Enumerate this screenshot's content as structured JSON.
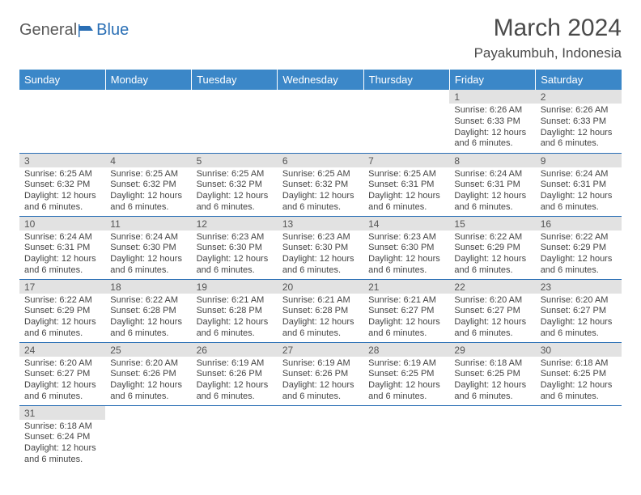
{
  "logo": {
    "text1": "General",
    "text2": "Blue"
  },
  "title": "March 2024",
  "location": "Payakumbuh, Indonesia",
  "colors": {
    "header_bg": "#3b87c8",
    "header_text": "#ffffff",
    "daynum_bg": "#e2e2e2",
    "row_border": "#2a6fb5",
    "logo_gray": "#5a5a5a",
    "logo_blue": "#2a6fb5",
    "body_text": "#444444"
  },
  "weekdays": [
    "Sunday",
    "Monday",
    "Tuesday",
    "Wednesday",
    "Thursday",
    "Friday",
    "Saturday"
  ],
  "weeks": [
    [
      null,
      null,
      null,
      null,
      null,
      {
        "n": "1",
        "sr": "6:26 AM",
        "ss": "6:33 PM",
        "dl": "12 hours and 6 minutes."
      },
      {
        "n": "2",
        "sr": "6:26 AM",
        "ss": "6:33 PM",
        "dl": "12 hours and 6 minutes."
      }
    ],
    [
      {
        "n": "3",
        "sr": "6:25 AM",
        "ss": "6:32 PM",
        "dl": "12 hours and 6 minutes."
      },
      {
        "n": "4",
        "sr": "6:25 AM",
        "ss": "6:32 PM",
        "dl": "12 hours and 6 minutes."
      },
      {
        "n": "5",
        "sr": "6:25 AM",
        "ss": "6:32 PM",
        "dl": "12 hours and 6 minutes."
      },
      {
        "n": "6",
        "sr": "6:25 AM",
        "ss": "6:32 PM",
        "dl": "12 hours and 6 minutes."
      },
      {
        "n": "7",
        "sr": "6:25 AM",
        "ss": "6:31 PM",
        "dl": "12 hours and 6 minutes."
      },
      {
        "n": "8",
        "sr": "6:24 AM",
        "ss": "6:31 PM",
        "dl": "12 hours and 6 minutes."
      },
      {
        "n": "9",
        "sr": "6:24 AM",
        "ss": "6:31 PM",
        "dl": "12 hours and 6 minutes."
      }
    ],
    [
      {
        "n": "10",
        "sr": "6:24 AM",
        "ss": "6:31 PM",
        "dl": "12 hours and 6 minutes."
      },
      {
        "n": "11",
        "sr": "6:24 AM",
        "ss": "6:30 PM",
        "dl": "12 hours and 6 minutes."
      },
      {
        "n": "12",
        "sr": "6:23 AM",
        "ss": "6:30 PM",
        "dl": "12 hours and 6 minutes."
      },
      {
        "n": "13",
        "sr": "6:23 AM",
        "ss": "6:30 PM",
        "dl": "12 hours and 6 minutes."
      },
      {
        "n": "14",
        "sr": "6:23 AM",
        "ss": "6:30 PM",
        "dl": "12 hours and 6 minutes."
      },
      {
        "n": "15",
        "sr": "6:22 AM",
        "ss": "6:29 PM",
        "dl": "12 hours and 6 minutes."
      },
      {
        "n": "16",
        "sr": "6:22 AM",
        "ss": "6:29 PM",
        "dl": "12 hours and 6 minutes."
      }
    ],
    [
      {
        "n": "17",
        "sr": "6:22 AM",
        "ss": "6:29 PM",
        "dl": "12 hours and 6 minutes."
      },
      {
        "n": "18",
        "sr": "6:22 AM",
        "ss": "6:28 PM",
        "dl": "12 hours and 6 minutes."
      },
      {
        "n": "19",
        "sr": "6:21 AM",
        "ss": "6:28 PM",
        "dl": "12 hours and 6 minutes."
      },
      {
        "n": "20",
        "sr": "6:21 AM",
        "ss": "6:28 PM",
        "dl": "12 hours and 6 minutes."
      },
      {
        "n": "21",
        "sr": "6:21 AM",
        "ss": "6:27 PM",
        "dl": "12 hours and 6 minutes."
      },
      {
        "n": "22",
        "sr": "6:20 AM",
        "ss": "6:27 PM",
        "dl": "12 hours and 6 minutes."
      },
      {
        "n": "23",
        "sr": "6:20 AM",
        "ss": "6:27 PM",
        "dl": "12 hours and 6 minutes."
      }
    ],
    [
      {
        "n": "24",
        "sr": "6:20 AM",
        "ss": "6:27 PM",
        "dl": "12 hours and 6 minutes."
      },
      {
        "n": "25",
        "sr": "6:20 AM",
        "ss": "6:26 PM",
        "dl": "12 hours and 6 minutes."
      },
      {
        "n": "26",
        "sr": "6:19 AM",
        "ss": "6:26 PM",
        "dl": "12 hours and 6 minutes."
      },
      {
        "n": "27",
        "sr": "6:19 AM",
        "ss": "6:26 PM",
        "dl": "12 hours and 6 minutes."
      },
      {
        "n": "28",
        "sr": "6:19 AM",
        "ss": "6:25 PM",
        "dl": "12 hours and 6 minutes."
      },
      {
        "n": "29",
        "sr": "6:18 AM",
        "ss": "6:25 PM",
        "dl": "12 hours and 6 minutes."
      },
      {
        "n": "30",
        "sr": "6:18 AM",
        "ss": "6:25 PM",
        "dl": "12 hours and 6 minutes."
      }
    ],
    [
      {
        "n": "31",
        "sr": "6:18 AM",
        "ss": "6:24 PM",
        "dl": "12 hours and 6 minutes."
      },
      null,
      null,
      null,
      null,
      null,
      null
    ]
  ],
  "labels": {
    "sunrise": "Sunrise:",
    "sunset": "Sunset:",
    "daylight": "Daylight:"
  }
}
